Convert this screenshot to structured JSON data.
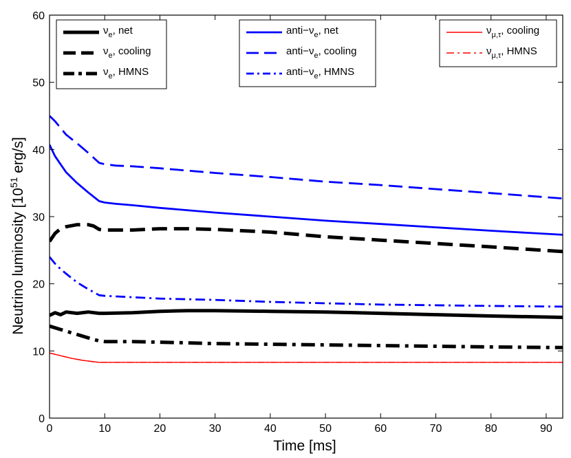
{
  "chart_data": {
    "type": "line",
    "title": "",
    "xlabel": "Time [ms]",
    "ylabel_prefix": "Neutrino luminosity [10",
    "ylabel_exp": "51",
    "ylabel_suffix": " erg/s]",
    "xlim": [
      0,
      93
    ],
    "ylim": [
      0,
      60
    ],
    "xticks": [
      0,
      10,
      20,
      30,
      40,
      50,
      60,
      70,
      80,
      90
    ],
    "yticks": [
      0,
      10,
      20,
      30,
      40,
      50,
      60
    ],
    "legends": [
      {
        "position": "top-left",
        "entries": [
          {
            "series": 0,
            "main": "ν",
            "sub": "e",
            "rest": ", net"
          },
          {
            "series": 1,
            "main": "ν",
            "sub": "e",
            "rest": ", cooling"
          },
          {
            "series": 2,
            "main": "ν",
            "sub": "e",
            "rest": ", HMNS"
          }
        ]
      },
      {
        "position": "top-center",
        "entries": [
          {
            "series": 3,
            "main": "anti−ν",
            "sub": "e",
            "rest": ", net"
          },
          {
            "series": 4,
            "main": "anti−ν",
            "sub": "e",
            "rest": ", cooling"
          },
          {
            "series": 5,
            "main": "anti−ν",
            "sub": "e",
            "rest": ", HMNS"
          }
        ]
      },
      {
        "position": "top-right",
        "entries": [
          {
            "series": 6,
            "main": "ν",
            "sub": "μ,τ",
            "rest": ", cooling"
          },
          {
            "series": 7,
            "main": "ν",
            "sub": "μ,τ",
            "rest": ", HMNS"
          }
        ]
      }
    ],
    "series": [
      {
        "name": "nu_e net",
        "color": "#000000",
        "style": "solid",
        "weight": "thick",
        "x": [
          0,
          1,
          2,
          3,
          5,
          7,
          9,
          10,
          15,
          20,
          25,
          30,
          40,
          50,
          60,
          70,
          80,
          93
        ],
        "y": [
          15.3,
          15.7,
          15.4,
          15.8,
          15.6,
          15.8,
          15.6,
          15.6,
          15.7,
          15.9,
          16.0,
          16.0,
          15.9,
          15.8,
          15.6,
          15.4,
          15.2,
          15.0
        ]
      },
      {
        "name": "nu_e cooling",
        "color": "#000000",
        "style": "dashed",
        "weight": "thick",
        "x": [
          0,
          1,
          2,
          3,
          5,
          7,
          8,
          9,
          10,
          15,
          20,
          25,
          30,
          40,
          50,
          60,
          70,
          80,
          93
        ],
        "y": [
          26.3,
          27.5,
          28.2,
          28.5,
          28.8,
          28.8,
          28.6,
          28.1,
          28.0,
          28.0,
          28.2,
          28.2,
          28.1,
          27.7,
          27.0,
          26.5,
          26.0,
          25.5,
          24.8
        ]
      },
      {
        "name": "nu_e HMNS",
        "color": "#000000",
        "style": "dashdot",
        "weight": "thick",
        "x": [
          0,
          2,
          4,
          6,
          8,
          9,
          10,
          15,
          20,
          30,
          40,
          50,
          60,
          70,
          80,
          93
        ],
        "y": [
          13.7,
          13.2,
          12.7,
          12.2,
          11.7,
          11.5,
          11.4,
          11.4,
          11.3,
          11.1,
          11.0,
          10.9,
          10.8,
          10.7,
          10.6,
          10.5
        ]
      },
      {
        "name": "anti-nu_e net",
        "color": "#0000ff",
        "style": "solid",
        "weight": "medium",
        "x": [
          0,
          1,
          2,
          3,
          5,
          7,
          9,
          10,
          12,
          15,
          20,
          30,
          40,
          50,
          60,
          70,
          80,
          93
        ],
        "y": [
          40.7,
          39.0,
          37.8,
          36.6,
          35.0,
          33.6,
          32.3,
          32.1,
          31.9,
          31.7,
          31.3,
          30.6,
          30.0,
          29.4,
          28.9,
          28.4,
          27.9,
          27.3
        ]
      },
      {
        "name": "anti-nu_e cooling",
        "color": "#0000ff",
        "style": "dashed",
        "weight": "medium",
        "x": [
          0,
          1,
          2,
          3,
          5,
          7,
          9,
          10,
          12,
          15,
          20,
          30,
          40,
          50,
          60,
          70,
          80,
          93
        ],
        "y": [
          45.0,
          44.2,
          43.2,
          42.2,
          40.9,
          39.5,
          38.0,
          37.8,
          37.6,
          37.5,
          37.2,
          36.5,
          35.9,
          35.2,
          34.7,
          34.1,
          33.5,
          32.7
        ]
      },
      {
        "name": "anti-nu_e HMNS",
        "color": "#0000ff",
        "style": "dashdot",
        "weight": "medium",
        "x": [
          0,
          1,
          2,
          3,
          5,
          7,
          9,
          10,
          15,
          20,
          30,
          40,
          50,
          60,
          70,
          80,
          93
        ],
        "y": [
          24.0,
          23.0,
          22.2,
          21.5,
          20.2,
          19.2,
          18.3,
          18.2,
          18.0,
          17.8,
          17.6,
          17.3,
          17.1,
          16.9,
          16.8,
          16.7,
          16.6
        ]
      },
      {
        "name": "nu_mu,tau cooling",
        "color": "#ff0000",
        "style": "solid",
        "weight": "thin",
        "x": [
          0,
          2,
          4,
          6,
          8,
          9,
          10,
          20,
          40,
          60,
          80,
          93
        ],
        "y": [
          9.7,
          9.3,
          8.9,
          8.6,
          8.4,
          8.3,
          8.3,
          8.3,
          8.3,
          8.3,
          8.3,
          8.3
        ]
      },
      {
        "name": "nu_mu,tau HMNS",
        "color": "#ff0000",
        "style": "dashdot",
        "weight": "thin",
        "x": [
          0,
          2,
          4,
          6,
          8,
          9,
          10,
          20,
          40,
          60,
          80,
          93
        ],
        "y": [
          9.7,
          9.3,
          8.9,
          8.6,
          8.4,
          8.3,
          8.3,
          8.3,
          8.3,
          8.3,
          8.3,
          8.3
        ]
      }
    ]
  }
}
